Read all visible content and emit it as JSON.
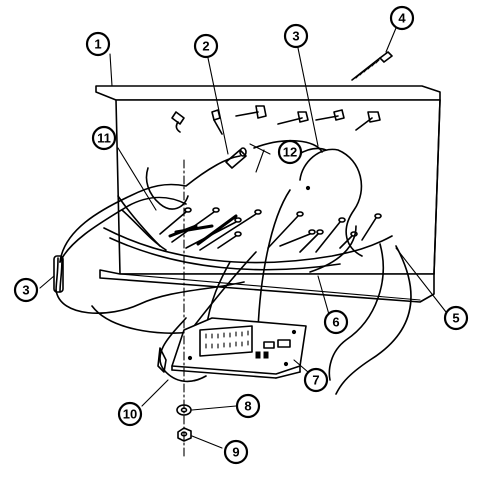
{
  "callouts": {
    "c1": "1",
    "c2": "2",
    "c3a": "3",
    "c3b": "3",
    "c4": "4",
    "c5": "5",
    "c6": "6",
    "c7": "7",
    "c8": "8",
    "c9": "9",
    "c10": "10",
    "c11": "11",
    "c12": "12"
  }
}
